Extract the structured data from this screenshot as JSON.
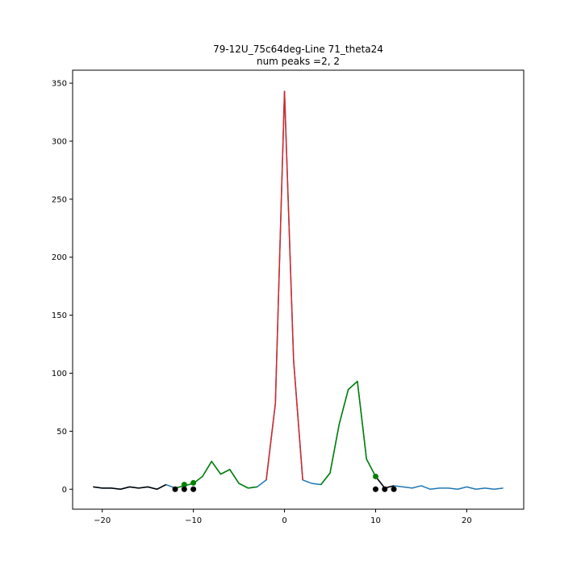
{
  "chart_data": {
    "type": "line",
    "title": "79-12U_75c64deg-Line 71_theta24",
    "subtitle": "num peaks =2, 2",
    "xlabel": "",
    "ylabel": "",
    "xlim": [
      -23.25,
      26.25
    ],
    "ylim": [
      -17.2,
      361.2
    ],
    "xticks": [
      -20,
      -10,
      0,
      10,
      20
    ],
    "yticks": [
      0,
      50,
      100,
      150,
      200,
      250,
      300,
      350
    ],
    "grid": false,
    "series": [
      {
        "color": "#1f77b4",
        "x": [
          -21,
          -20,
          -19,
          -18,
          -17,
          -16,
          -15,
          -14,
          -13,
          -12,
          -11,
          -10,
          -9,
          -8,
          -7,
          -6,
          -5,
          -4,
          -3,
          -2,
          -1,
          0,
          1,
          2,
          3,
          4,
          5,
          6,
          7,
          8,
          9,
          10,
          11,
          12,
          13,
          14,
          15,
          16,
          17,
          18,
          19,
          20,
          21,
          22,
          23,
          24
        ],
        "y": [
          2,
          1,
          1,
          0,
          2,
          1,
          2,
          0,
          4,
          1,
          3,
          5,
          11,
          24,
          13,
          17,
          5,
          1,
          2,
          8,
          74,
          343,
          111,
          8,
          5,
          4,
          14,
          56,
          86,
          93,
          26,
          11,
          1,
          3,
          2,
          1,
          3,
          0,
          1,
          1,
          0,
          2,
          0,
          1,
          0,
          1
        ]
      },
      {
        "color": "#000000",
        "x": [
          -21,
          -20,
          -19,
          -18,
          -17,
          -16,
          -15,
          -14,
          -13
        ],
        "y": [
          2,
          1,
          1,
          0,
          2,
          1,
          2,
          0,
          4
        ]
      },
      {
        "color": "#000000",
        "x": [
          10,
          11,
          12
        ],
        "y": [
          11,
          1,
          3
        ]
      },
      {
        "color": "#008000",
        "x": [
          -12,
          -11,
          -10,
          -9,
          -8,
          -7,
          -6,
          -5,
          -4,
          -3
        ],
        "y": [
          1,
          3,
          5,
          11,
          24,
          13,
          17,
          5,
          1,
          2
        ]
      },
      {
        "color": "#008000",
        "x": [
          4,
          5,
          6,
          7,
          8,
          9,
          10
        ],
        "y": [
          4,
          14,
          56,
          86,
          93,
          26,
          11
        ]
      },
      {
        "color": "#d62728",
        "x": [
          -2,
          -1,
          0,
          1,
          2
        ],
        "y": [
          8,
          74,
          343,
          111,
          8
        ]
      }
    ],
    "markers": [
      {
        "color": "#008000",
        "x": [
          -11,
          -10,
          10
        ],
        "y": [
          4,
          5.5,
          11
        ]
      },
      {
        "color": "#000000",
        "x": [
          -12,
          -11,
          -10,
          10,
          11,
          12
        ],
        "y": [
          0,
          0,
          0,
          0,
          0,
          0
        ]
      }
    ]
  }
}
